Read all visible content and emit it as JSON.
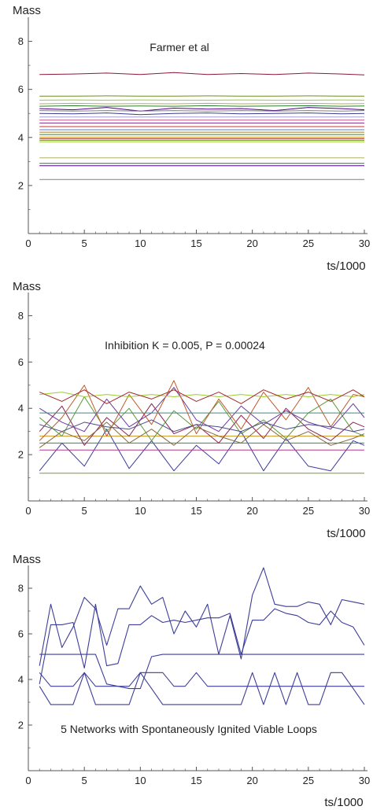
{
  "colors": {
    "axis": "#555555",
    "farmer_palette": [
      "#8b1a3a",
      "#6b8e23",
      "#9acd32",
      "#b0b060",
      "#2e7d32",
      "#4b0082",
      "#808080",
      "#3b3b8f",
      "#a0a0d0",
      "#c05080",
      "#7b2e8e",
      "#cc3333",
      "#5a7fbf",
      "#b87333",
      "#228b22",
      "#d4a017"
    ],
    "inhibition_palette": [
      "#7a9a2a",
      "#3a3aa0",
      "#b03a8a",
      "#2e8b57",
      "#c8961e",
      "#8b2252",
      "#5a9a3a",
      "#6b3aa0",
      "#c05a2a",
      "#4a4a8a",
      "#9acd32",
      "#a02a2a",
      "#3a8a8a",
      "#8a6a3a"
    ],
    "network": "#3d3d9a"
  },
  "chart_data": [
    {
      "type": "line",
      "title": "Farmer et al",
      "xlabel": "ts/1000",
      "ylabel": "Mass",
      "xlim": [
        0,
        30
      ],
      "ylim": [
        0,
        9
      ],
      "x_ticks": [
        "0",
        "5",
        "10",
        "15",
        "20",
        "25",
        "30"
      ],
      "y_ticks": [
        "2",
        "4",
        "6",
        "8"
      ],
      "x": [
        1,
        4,
        7,
        10,
        13,
        16,
        19,
        22,
        25,
        28,
        30
      ],
      "series": [
        {
          "values": [
            6.62,
            6.64,
            6.68,
            6.62,
            6.7,
            6.62,
            6.66,
            6.62,
            6.68,
            6.64,
            6.6
          ]
        },
        {
          "values": [
            5.72,
            5.72,
            5.73,
            5.72,
            5.72,
            5.73,
            5.72,
            5.72,
            5.73,
            5.72,
            5.72
          ]
        },
        {
          "values": [
            5.55,
            5.56,
            5.55,
            5.56,
            5.55,
            5.55,
            5.56,
            5.55,
            5.55,
            5.56,
            5.55
          ]
        },
        {
          "values": [
            5.4,
            5.42,
            5.4,
            5.41,
            5.4,
            5.42,
            5.4,
            5.41,
            5.42,
            5.4,
            5.41
          ]
        },
        {
          "values": [
            5.3,
            5.32,
            5.3,
            5.31,
            5.3,
            5.32,
            5.3,
            5.31,
            5.32,
            5.3,
            5.31
          ]
        },
        {
          "values": [
            5.2,
            5.15,
            5.25,
            5.1,
            5.22,
            5.18,
            5.2,
            5.12,
            5.25,
            5.2,
            5.15
          ]
        },
        {
          "values": [
            5.12,
            5.1,
            5.12,
            5.1,
            5.12,
            5.1,
            5.12,
            5.1,
            5.12,
            5.1,
            5.12
          ]
        },
        {
          "values": [
            5.0,
            4.98,
            5.02,
            4.95,
            5.0,
            5.02,
            4.98,
            5.0,
            5.02,
            4.98,
            5.0
          ]
        },
        {
          "values": [
            4.85,
            4.85,
            4.85,
            4.85,
            4.85,
            4.85,
            4.85,
            4.85,
            4.85,
            4.85,
            4.85
          ]
        },
        {
          "values": [
            4.72,
            4.72,
            4.72,
            4.72,
            4.72,
            4.72,
            4.72,
            4.72,
            4.72,
            4.72,
            4.72
          ]
        },
        {
          "values": [
            4.6,
            4.6,
            4.6,
            4.6,
            4.6,
            4.6,
            4.6,
            4.6,
            4.6,
            4.6,
            4.6
          ]
        },
        {
          "values": [
            4.45,
            4.45,
            4.45,
            4.45,
            4.45,
            4.45,
            4.45,
            4.45,
            4.45,
            4.45,
            4.45
          ]
        },
        {
          "values": [
            4.32,
            4.32,
            4.32,
            4.32,
            4.32,
            4.32,
            4.32,
            4.32,
            4.32,
            4.32,
            4.32
          ]
        },
        {
          "values": [
            4.22,
            4.22,
            4.22,
            4.22,
            4.22,
            4.22,
            4.22,
            4.22,
            4.22,
            4.22,
            4.22
          ]
        },
        {
          "values": [
            4.12,
            4.12,
            4.12,
            4.12,
            4.12,
            4.12,
            4.12,
            4.12,
            4.12,
            4.12,
            4.12
          ]
        },
        {
          "values": [
            4.02,
            4.02,
            4.02,
            4.02,
            4.02,
            4.02,
            4.02,
            4.02,
            4.02,
            4.02,
            4.02
          ]
        },
        {
          "values": [
            3.95,
            3.95,
            3.95,
            3.95,
            3.95,
            3.95,
            3.95,
            3.95,
            3.95,
            3.95,
            3.95
          ]
        },
        {
          "values": [
            3.88,
            3.88,
            3.88,
            3.88,
            3.88,
            3.88,
            3.88,
            3.88,
            3.88,
            3.88,
            3.88
          ]
        },
        {
          "values": [
            3.82,
            3.82,
            3.82,
            3.82,
            3.82,
            3.82,
            3.82,
            3.82,
            3.82,
            3.82,
            3.82
          ]
        },
        {
          "values": [
            3.15,
            3.15,
            3.15,
            3.15,
            3.15,
            3.15,
            3.15,
            3.15,
            3.15,
            3.15,
            3.15
          ]
        },
        {
          "values": [
            2.92,
            2.92,
            2.92,
            2.92,
            2.92,
            2.92,
            2.92,
            2.92,
            2.92,
            2.92,
            2.92
          ]
        },
        {
          "values": [
            2.82,
            2.82,
            2.82,
            2.82,
            2.82,
            2.82,
            2.82,
            2.82,
            2.82,
            2.82,
            2.82
          ]
        },
        {
          "values": [
            2.25,
            2.25,
            2.25,
            2.25,
            2.25,
            2.25,
            2.25,
            2.25,
            2.25,
            2.25,
            2.25
          ]
        }
      ]
    },
    {
      "type": "line",
      "title": "Inhibition K = 0.005, P = 0.00024",
      "xlabel": "ts/1000",
      "ylabel": "Mass",
      "xlim": [
        0,
        30
      ],
      "ylim": [
        0,
        9
      ],
      "x_ticks": [
        "0",
        "5",
        "10",
        "15",
        "20",
        "25",
        "30"
      ],
      "y_ticks": [
        "2",
        "4",
        "6",
        "8"
      ],
      "x": [
        1,
        3,
        5,
        7,
        9,
        11,
        13,
        15,
        17,
        19,
        21,
        23,
        25,
        27,
        29,
        30
      ],
      "series": [
        {
          "values": [
            1.2,
            1.2,
            1.2,
            1.2,
            1.2,
            1.2,
            1.2,
            1.2,
            1.2,
            1.2,
            1.2,
            1.2,
            1.2,
            1.2,
            1.2,
            1.2
          ]
        },
        {
          "values": [
            1.3,
            2.5,
            1.5,
            3.1,
            1.4,
            2.6,
            1.3,
            2.4,
            1.6,
            3.0,
            1.3,
            2.7,
            1.5,
            1.3,
            2.6,
            2.4
          ]
        },
        {
          "values": [
            2.2,
            2.2,
            2.2,
            2.2,
            2.2,
            2.2,
            2.2,
            2.2,
            2.2,
            2.2,
            2.2,
            2.2,
            2.2,
            2.2,
            2.2,
            2.2
          ]
        },
        {
          "values": [
            2.5,
            2.5,
            2.5,
            2.5,
            2.5,
            2.5,
            2.5,
            2.5,
            2.5,
            2.5,
            2.5,
            2.5,
            2.5,
            2.5,
            2.5,
            2.5
          ]
        },
        {
          "values": [
            2.8,
            2.8,
            2.8,
            2.8,
            2.8,
            2.8,
            2.8,
            2.8,
            2.8,
            2.8,
            2.8,
            2.8,
            2.8,
            2.8,
            2.8,
            2.8
          ]
        },
        {
          "values": [
            3.0,
            4.1,
            2.4,
            3.6,
            2.8,
            4.2,
            2.9,
            3.3,
            2.5,
            3.7,
            2.7,
            4.0,
            3.1,
            2.6,
            3.4,
            3.2
          ]
        },
        {
          "values": [
            3.6,
            2.8,
            4.5,
            3.0,
            4.0,
            2.6,
            3.9,
            3.1,
            4.3,
            2.9,
            3.5,
            2.7,
            3.8,
            4.4,
            3.0,
            2.8
          ]
        },
        {
          "values": [
            4.0,
            3.4,
            3.0,
            4.4,
            3.2,
            3.8,
            4.9,
            3.5,
            3.0,
            4.1,
            3.3,
            3.9,
            3.4,
            3.1,
            4.2,
            3.6
          ]
        },
        {
          "values": [
            2.6,
            3.6,
            5.0,
            2.8,
            4.6,
            3.3,
            5.2,
            2.9,
            4.4,
            3.1,
            4.7,
            3.5,
            4.9,
            3.2,
            4.6,
            4.5
          ]
        },
        {
          "values": [
            3.3,
            3.0,
            3.4,
            3.2,
            3.1,
            3.5,
            3.0,
            3.3,
            3.2,
            3.0,
            3.4,
            3.1,
            3.3,
            3.2,
            3.0,
            3.1
          ]
        },
        {
          "values": [
            4.6,
            4.7,
            4.5,
            4.6,
            4.5,
            4.6,
            4.5,
            4.6,
            4.5,
            4.6,
            4.5,
            4.6,
            4.5,
            4.6,
            4.5,
            4.6
          ]
        },
        {
          "values": [
            4.7,
            4.3,
            4.8,
            4.2,
            4.7,
            4.4,
            4.8,
            4.3,
            4.7,
            4.2,
            4.8,
            4.4,
            4.7,
            4.3,
            4.8,
            4.5
          ]
        },
        {
          "values": [
            3.8,
            3.8,
            3.8,
            3.8,
            3.8,
            3.8,
            3.8,
            3.8,
            3.8,
            3.8,
            3.8,
            3.8,
            3.8,
            3.8,
            3.8,
            3.8
          ]
        },
        {
          "values": [
            2.3,
            3.0,
            2.6,
            3.4,
            2.5,
            3.1,
            2.4,
            3.2,
            2.8,
            2.5,
            3.3,
            2.6,
            3.0,
            2.4,
            2.7,
            2.9
          ]
        }
      ]
    },
    {
      "type": "line",
      "title": "5  Networks with Spontaneously Ignited Viable Loops",
      "xlabel": "ts/1000",
      "ylabel": "Mass",
      "xlim": [
        0,
        30
      ],
      "ylim": [
        0,
        9
      ],
      "x_ticks": [
        "0",
        "5",
        "10",
        "15",
        "20",
        "25",
        "30"
      ],
      "y_ticks": [
        "2",
        "4",
        "6",
        "8"
      ],
      "x": [
        1,
        2,
        3,
        4,
        5,
        6,
        7,
        8,
        9,
        10,
        11,
        12,
        13,
        14,
        15,
        16,
        17,
        18,
        19,
        20,
        21,
        22,
        23,
        24,
        25,
        26,
        27,
        28,
        29,
        30
      ],
      "series": [
        {
          "values": [
            4.6,
            7.3,
            5.4,
            6.3,
            7.6,
            7.1,
            5.5,
            7.1,
            7.1,
            8.1,
            7.3,
            7.6,
            6.0,
            7.0,
            6.3,
            7.3,
            5.1,
            6.8,
            4.9,
            7.7,
            8.9,
            7.3,
            7.2,
            7.2,
            7.4,
            7.3,
            6.4,
            7.5,
            7.4,
            7.3
          ]
        },
        {
          "values": [
            3.8,
            6.4,
            6.4,
            6.5,
            4.5,
            7.3,
            4.6,
            4.7,
            6.4,
            6.4,
            6.8,
            6.5,
            6.6,
            6.5,
            6.6,
            6.7,
            6.7,
            6.9,
            5.1,
            6.6,
            6.6,
            7.1,
            6.9,
            6.8,
            6.5,
            6.4,
            7.0,
            6.5,
            6.3,
            5.5
          ]
        },
        {
          "values": [
            5.1,
            5.1,
            5.1,
            5.1,
            5.1,
            5.1,
            3.8,
            3.7,
            3.6,
            3.6,
            5.0,
            5.1,
            5.1,
            5.1,
            5.1,
            5.1,
            5.1,
            5.1,
            5.1,
            5.1,
            5.1,
            5.1,
            5.1,
            5.1,
            5.1,
            5.1,
            5.1,
            5.1,
            5.1,
            5.1
          ]
        },
        {
          "values": [
            4.3,
            3.7,
            3.7,
            3.7,
            4.3,
            3.7,
            3.7,
            3.7,
            3.7,
            4.3,
            4.3,
            4.3,
            3.7,
            3.7,
            4.3,
            3.7,
            3.7,
            3.7,
            3.7,
            3.7,
            3.7,
            3.7,
            3.7,
            3.7,
            3.7,
            3.7,
            3.7,
            3.7,
            3.7,
            3.7
          ]
        },
        {
          "values": [
            3.7,
            2.9,
            2.9,
            2.9,
            4.3,
            2.9,
            2.9,
            2.9,
            2.9,
            4.3,
            3.6,
            2.9,
            2.9,
            2.9,
            2.9,
            2.9,
            2.9,
            2.9,
            2.9,
            4.3,
            2.9,
            4.3,
            2.9,
            4.3,
            2.9,
            2.9,
            4.3,
            4.3,
            3.6,
            2.9
          ]
        }
      ]
    }
  ]
}
